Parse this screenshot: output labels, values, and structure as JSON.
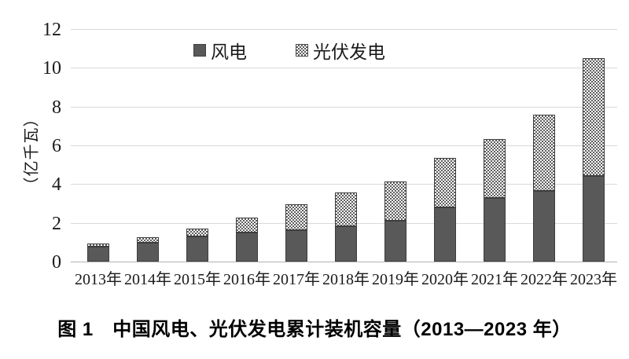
{
  "chart_data": {
    "type": "bar",
    "stacked": true,
    "categories": [
      "2013年",
      "2014年",
      "2015年",
      "2016年",
      "2017年",
      "2018年",
      "2019年",
      "2020年",
      "2021年",
      "2022年",
      "2023年"
    ],
    "series": [
      {
        "name": "风电",
        "pattern": "solid",
        "color": "#595959",
        "values": [
          0.76,
          0.96,
          1.29,
          1.49,
          1.64,
          1.84,
          2.1,
          2.81,
          3.28,
          3.65,
          4.41
        ]
      },
      {
        "name": "光伏发电",
        "pattern": "checker",
        "color": "#5e5e5e",
        "values": [
          0.19,
          0.28,
          0.43,
          0.77,
          1.3,
          1.74,
          2.04,
          2.53,
          3.06,
          3.93,
          6.09
        ]
      }
    ],
    "totals": [
      0.95,
      1.24,
      1.72,
      2.26,
      2.94,
      3.58,
      4.14,
      5.34,
      6.34,
      7.58,
      10.5
    ],
    "ylabel": "（亿千瓦）",
    "ylim": [
      0,
      12
    ],
    "ytick_step": 2,
    "yticks": [
      0,
      2,
      4,
      6,
      8,
      10,
      12
    ],
    "grid": true,
    "legend_position": "top-center"
  },
  "caption": "图 1　中国风电、光伏发电累计装机容量（2013—2023 年）",
  "colors": {
    "background": "#ffffff",
    "wind_fill": "#595959",
    "solar_pattern_dot": "#5e5e5e",
    "solar_pattern_bg": "#ffffff",
    "bar_border": "#3d3d3d",
    "gridline": "#d9d9d9",
    "axis_line": "#b3b3b3",
    "text": "#1a1a1a"
  }
}
